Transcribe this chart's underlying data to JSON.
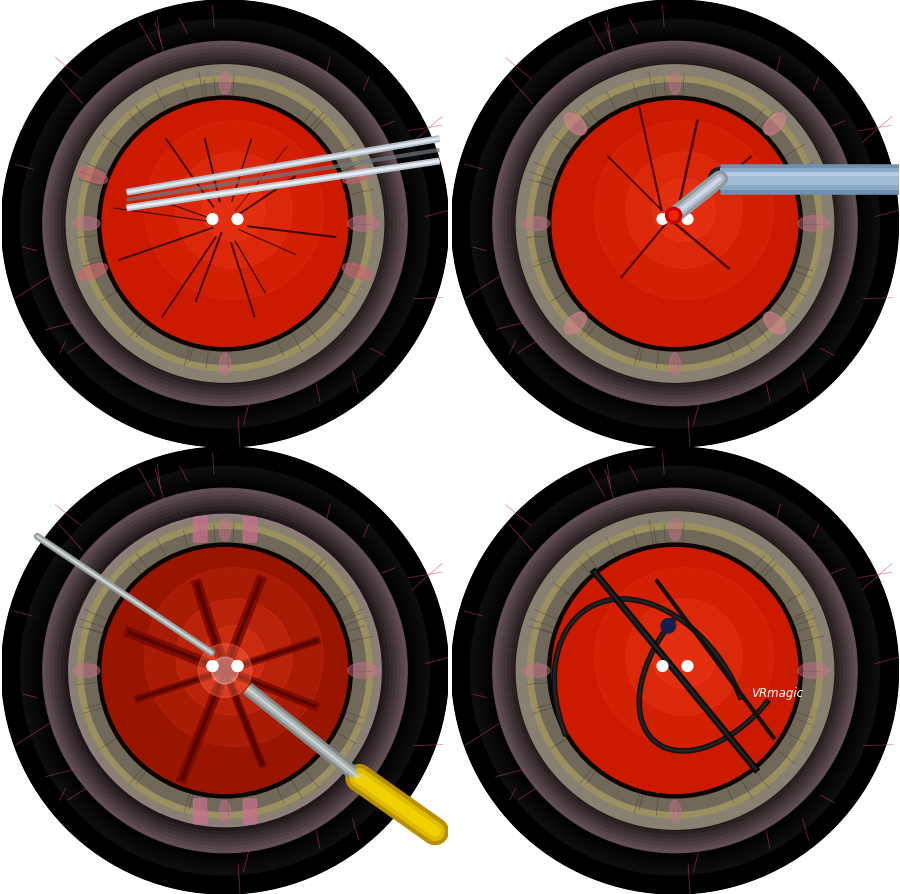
{
  "figure_size": [
    9.0,
    8.94
  ],
  "dpi": 100,
  "background_color": "#ffffff",
  "panel_bg": "#000000",
  "panel_positions": {
    "A": [
      0.0,
      0.5,
      0.5,
      0.5
    ],
    "B": [
      0.5,
      0.5,
      0.5,
      0.5
    ],
    "C": [
      0.0,
      0.0,
      0.5,
      0.5
    ],
    "D": [
      0.5,
      0.0,
      0.5,
      0.5
    ]
  },
  "label_fontsize": 22,
  "label_color": "white",
  "vignette_outer": "#000000",
  "sclera_pink": "#c8a0a8",
  "iris_outer": "#7a7a8a",
  "iris_mid": "#888898",
  "iris_inner_ring": "#a8a070",
  "pupil_red": "#cc1a00",
  "pupil_red_C": "#991500",
  "pupil_bright": "#ee2200",
  "dark_line": "#1a0800",
  "crack_color_A": "#220000",
  "crack_color_B": "#330500",
  "crack_color_D": "#111111"
}
